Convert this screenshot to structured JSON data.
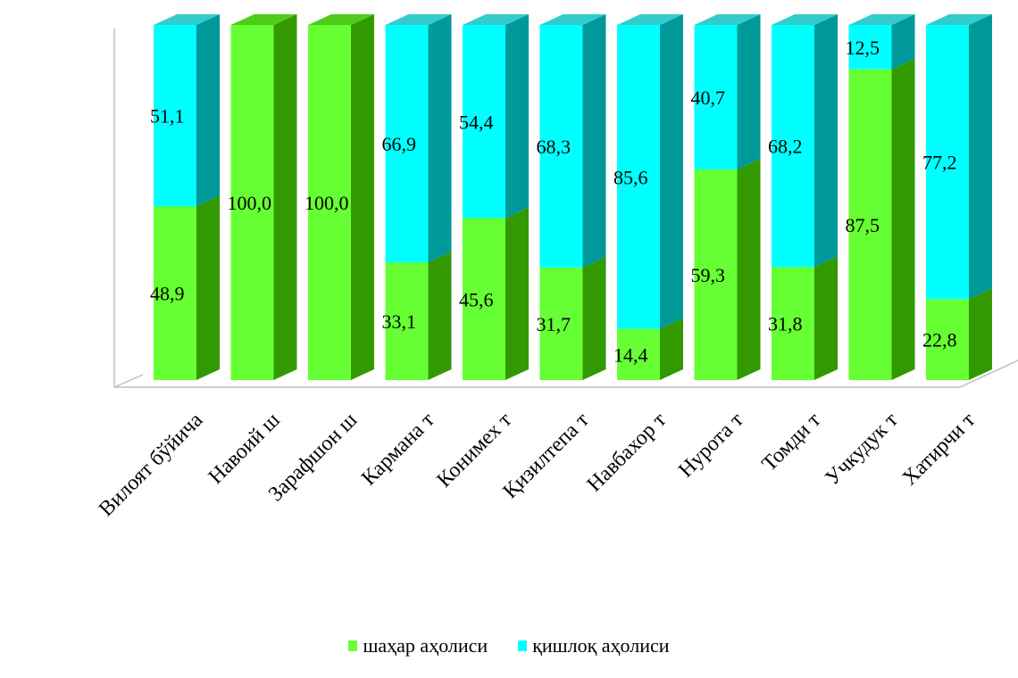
{
  "chart_data": {
    "type": "bar",
    "stacked": true,
    "percent_stacked": true,
    "three_d": true,
    "categories": [
      "Вилоят бўйича",
      "Навоий ш",
      "Зарафшон ш",
      "Кармана т",
      "Конимех т",
      "Қизилтепа т",
      "Навбахор т",
      "Нурота т",
      "Томди т",
      "Учкудук т",
      "Хатирчи т"
    ],
    "series": [
      {
        "name": "шаҳар аҳолиси",
        "color": "#66ff33",
        "values": [
          48.9,
          100.0,
          100.0,
          33.1,
          45.6,
          31.7,
          14.4,
          59.3,
          31.8,
          87.5,
          22.8
        ],
        "labels": [
          "48,9",
          "100,0",
          "100,0",
          "33,1",
          "45,6",
          "31,7",
          "14,4",
          "59,3",
          "31,8",
          "87,5",
          "22,8"
        ]
      },
      {
        "name": "қишлоқ аҳолиси",
        "color": "#00ffff",
        "values": [
          51.1,
          0,
          0,
          66.9,
          54.4,
          68.3,
          85.6,
          40.7,
          68.2,
          12.5,
          77.2
        ],
        "labels": [
          "51,1",
          "",
          "",
          "66,9",
          "54,4",
          "68,3",
          "85,6",
          "40,7",
          "68,2",
          "12,5",
          "77,2"
        ]
      }
    ],
    "ylim": [
      0,
      100
    ],
    "grid": false,
    "legend_position": "bottom",
    "legend": [
      {
        "label": "шаҳар аҳолиси",
        "color": "#66ff33"
      },
      {
        "label": "қишлоқ аҳолиси",
        "color": "#00ffff"
      }
    ]
  }
}
